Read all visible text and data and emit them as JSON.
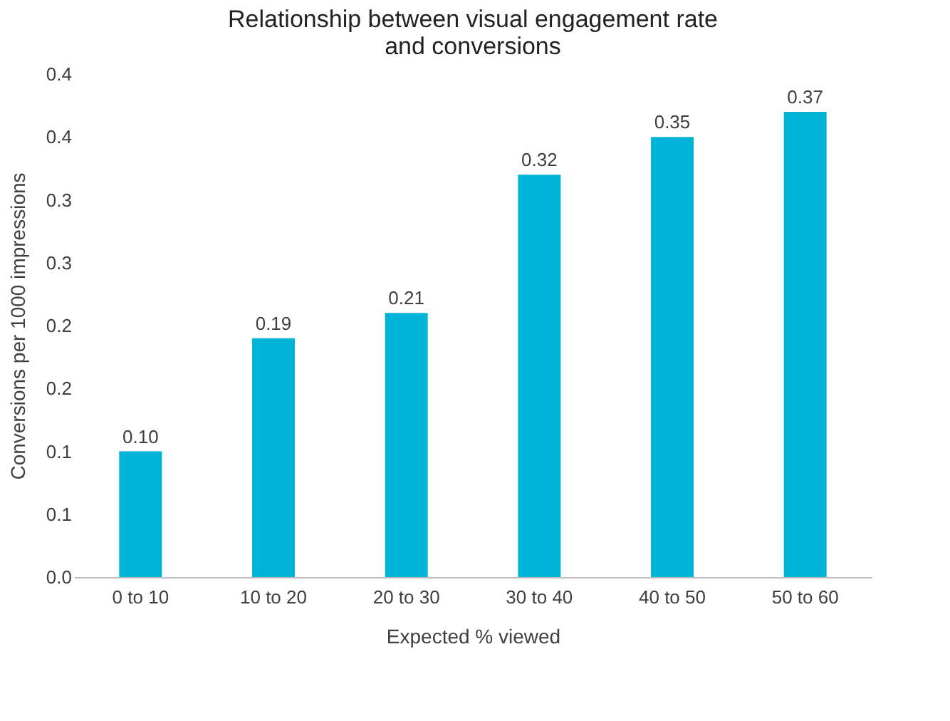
{
  "chart_data": {
    "type": "bar",
    "title": "Relationship between visual engagement rate\nand conversions",
    "xlabel": "Expected % viewed",
    "ylabel": "Conversions per 1000 impressions",
    "categories": [
      "0 to 10",
      "10 to 20",
      "20 to 30",
      "30 to 40",
      "40 to 50",
      "50 to 60"
    ],
    "values": [
      0.1,
      0.19,
      0.21,
      0.32,
      0.35,
      0.37
    ],
    "color": "#00b4d8",
    "value_labels": [
      "0.10",
      "0.19",
      "0.21",
      "0.32",
      "0.35",
      "0.37"
    ],
    "ylim": [
      0,
      0.4
    ],
    "yticks": [
      {
        "value": 0,
        "label": "0.0"
      },
      {
        "value": 0.05,
        "label": "0.1"
      },
      {
        "value": 0.1,
        "label": "0.1"
      },
      {
        "value": 0.15,
        "label": "0.2"
      },
      {
        "value": 0.2,
        "label": "0.2"
      },
      {
        "value": 0.25,
        "label": "0.3"
      },
      {
        "value": 0.3,
        "label": "0.3"
      },
      {
        "value": 0.35,
        "label": "0.4"
      },
      {
        "value": 0.4,
        "label": "0.4"
      }
    ],
    "grid": false
  }
}
